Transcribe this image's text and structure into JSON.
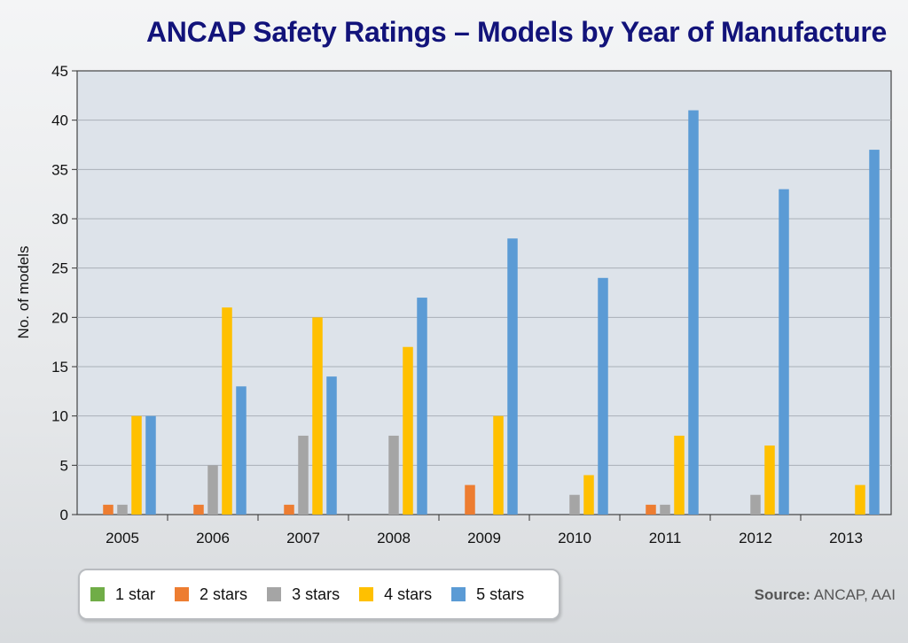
{
  "title": "ANCAP Safety Ratings – Models by Year of Manufacture",
  "source": {
    "label": "Source:",
    "text": "ANCAP, AAI"
  },
  "chart_data": {
    "type": "bar",
    "title": "ANCAP Safety Ratings – Models by Year of Manufacture",
    "xlabel": "",
    "ylabel": "No. of models",
    "ylim": [
      0,
      45
    ],
    "yticks": [
      0,
      5,
      10,
      15,
      20,
      25,
      30,
      35,
      40,
      45
    ],
    "grid": true,
    "legend_position": "bottom-left",
    "categories": [
      "2005",
      "2006",
      "2007",
      "2008",
      "2009",
      "2010",
      "2011",
      "2012",
      "2013"
    ],
    "series": [
      {
        "name": "1 star",
        "color": "#70ad47",
        "values": [
          0,
          0,
          0,
          0,
          0,
          0,
          0,
          0,
          0
        ]
      },
      {
        "name": "2 stars",
        "color": "#ed7d31",
        "values": [
          1,
          1,
          1,
          0,
          3,
          0,
          1,
          0,
          0
        ]
      },
      {
        "name": "3 stars",
        "color": "#a5a5a5",
        "values": [
          1,
          5,
          8,
          8,
          0,
          2,
          1,
          2,
          0
        ]
      },
      {
        "name": "4 stars",
        "color": "#ffc000",
        "values": [
          10,
          21,
          20,
          17,
          10,
          4,
          8,
          7,
          3
        ]
      },
      {
        "name": "5 stars",
        "color": "#5b9bd5",
        "values": [
          10,
          13,
          14,
          22,
          28,
          24,
          41,
          33,
          37
        ]
      }
    ]
  }
}
